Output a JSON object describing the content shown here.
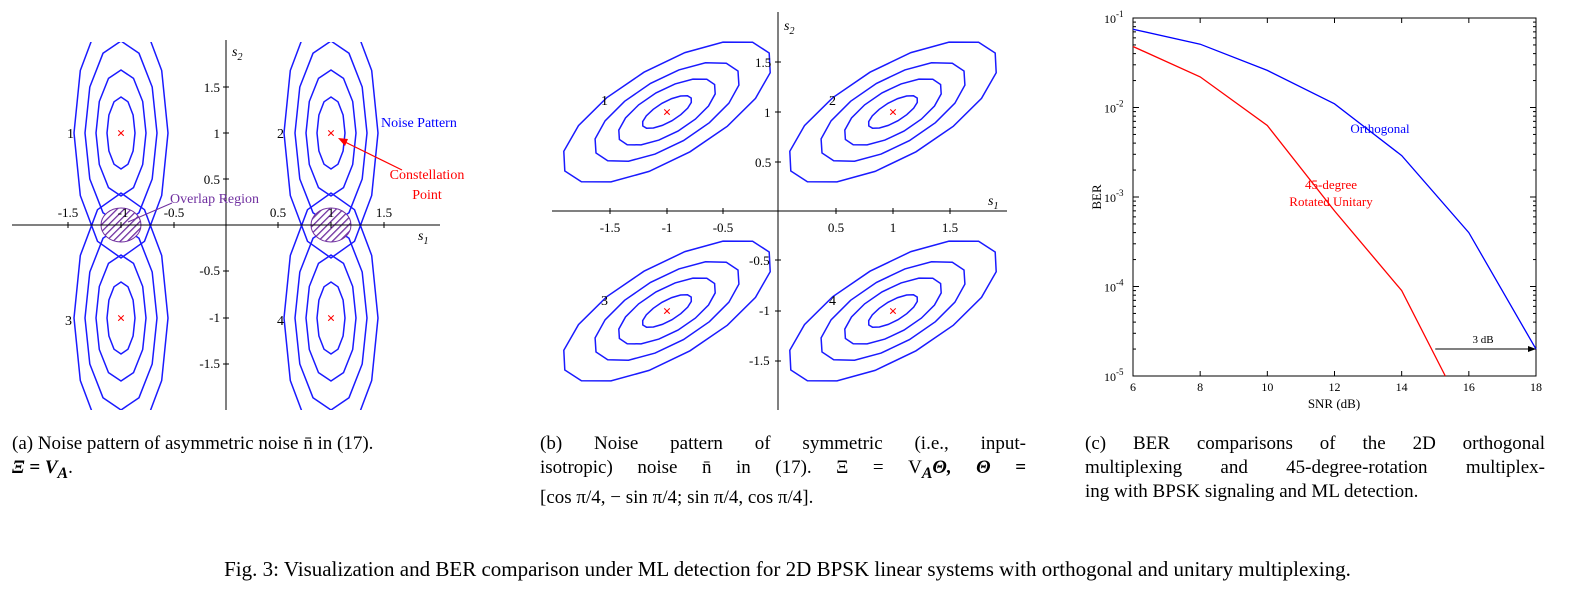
{
  "panel_a": {
    "axis_x_label": "s",
    "axis_x_sub": "1",
    "axis_y_label": "s",
    "axis_y_sub": "2",
    "x_ticks": [
      "-1.5",
      "-1",
      "-0.5",
      "0.5",
      "1",
      "1.5"
    ],
    "y_ticks": [
      "1.5",
      "1",
      "0.5",
      "-0.5",
      "-1",
      "-1.5"
    ],
    "point_labels": [
      "1",
      "2",
      "3",
      "4"
    ],
    "annotation_noise": "Noise Pattern",
    "annotation_constellation_1": "Constellation",
    "annotation_constellation_2": "Point",
    "annotation_overlap": "Overlap Region",
    "caption_line1": "(a) Noise pattern of asymmetric noise n̄ in (17).",
    "caption_line2": "Ξ = V",
    "caption_line2_sub": "A",
    "caption_line2_end": "."
  },
  "panel_b": {
    "axis_x_label": "s",
    "axis_x_sub": "1",
    "axis_y_label": "s",
    "axis_y_sub": "2",
    "x_ticks": [
      "-1.5",
      "-1",
      "-0.5",
      "0.5",
      "1",
      "1.5"
    ],
    "y_ticks": [
      "1.5",
      "1",
      "0.5",
      "-0.5",
      "-1",
      "-1.5"
    ],
    "point_labels": [
      "1",
      "2",
      "3",
      "4"
    ],
    "caption_line1": "(b) Noise pattern of symmetric (i.e., input-",
    "caption_line2": "isotropic) noise n̄ in (17). Ξ = V",
    "caption_line2_sub": "A",
    "caption_line2_end": "Θ, Θ =",
    "caption_line3": "[cos π/4, − sin π/4; sin π/4, cos π/4]."
  },
  "chart_data": {
    "type": "line",
    "title": "",
    "xlabel": "SNR (dB)",
    "ylabel": "BER",
    "x_scale": "linear",
    "y_scale": "log",
    "xlim": [
      6,
      18
    ],
    "ylim": [
      1e-05,
      0.1
    ],
    "x_ticks": [
      "6",
      "8",
      "10",
      "12",
      "14",
      "16",
      "18"
    ],
    "y_ticks": [
      {
        "base": "10",
        "exp": "-1",
        "value": 0.1
      },
      {
        "base": "10",
        "exp": "-2",
        "value": 0.01
      },
      {
        "base": "10",
        "exp": "-3",
        "value": 0.001
      },
      {
        "base": "10",
        "exp": "-4",
        "value": 0.0001
      },
      {
        "base": "10",
        "exp": "-5",
        "value": 1e-05
      }
    ],
    "series": [
      {
        "name": "Orthogonal",
        "color": "#0000ff",
        "x": [
          6,
          8,
          10,
          12,
          14,
          16,
          18
        ],
        "values": [
          0.075,
          0.051,
          0.026,
          0.011,
          0.0029,
          0.0004,
          2e-05
        ]
      },
      {
        "name": "45-degree Rotated Unitary",
        "color": "#ff0000",
        "x": [
          6,
          8,
          10,
          12,
          14,
          15.3
        ],
        "values": [
          0.048,
          0.022,
          0.0063,
          0.0007,
          9e-05,
          1e-05
        ]
      }
    ],
    "legend_labels": {
      "orthogonal": "Orthogonal",
      "rotated_line1": "45-degree",
      "rotated_line2": "Rotated Unitary"
    },
    "annotation_arrow": {
      "label": "3 dB",
      "x_from": 15,
      "x_to": 18,
      "y": 2e-05
    }
  },
  "panel_c": {
    "caption_line1": "(c) BER comparisons of the 2D orthogonal",
    "caption_line2": "multiplexing and 45-degree-rotation multiplex-",
    "caption_line3": "ing with BPSK signaling and ML detection."
  },
  "figure_caption": "Fig. 3: Visualization and BER comparison under ML detection for 2D BPSK linear systems with orthogonal and unitary multiplexing.",
  "colors": {
    "contour": "#1a1aff",
    "point": "#ff0000",
    "overlap": "#7030a0",
    "annotation_red": "#ff0000",
    "annotation_blue": "#0000ff"
  }
}
